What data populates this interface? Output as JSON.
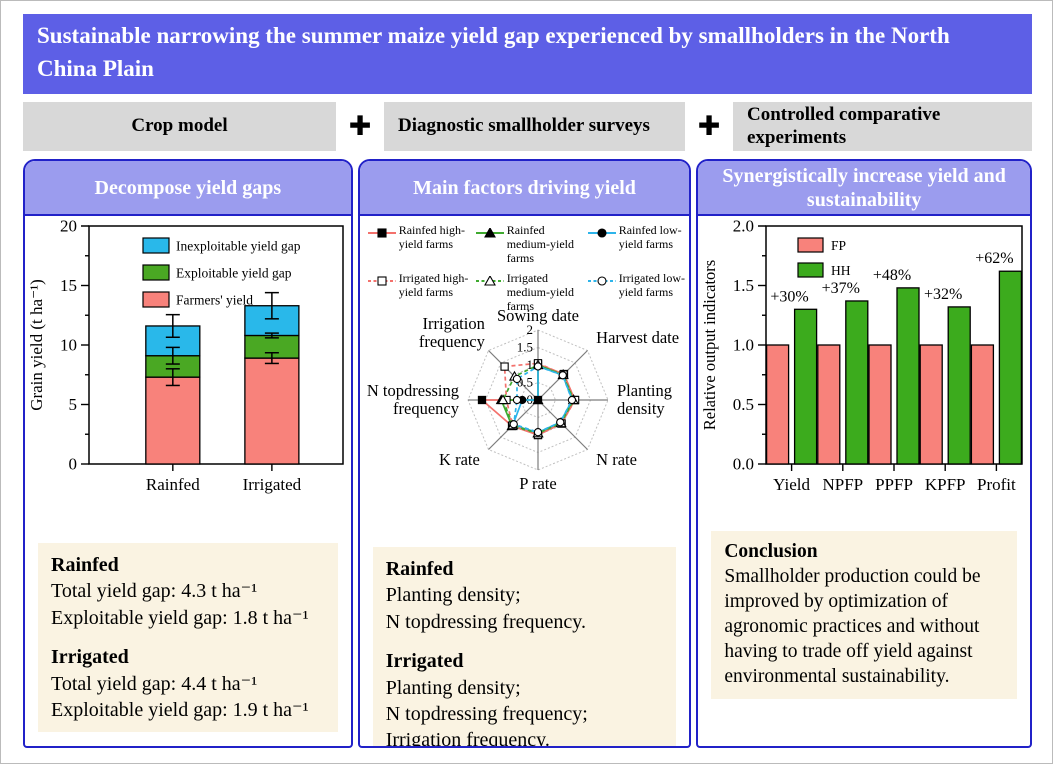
{
  "title": "Sustainable narrowing the summer maize yield gap experienced by smallholders in the North China Plain",
  "methods": {
    "plus": "✚",
    "items": [
      "Crop model",
      "Diagnostic smallholder surveys",
      "Controlled comparative experiments"
    ]
  },
  "colors": {
    "banner_bg": "#5d5fe6",
    "panel_header_bg": "#9b9cee",
    "panel_border": "#2121c8",
    "method_bg": "#d8d8d8",
    "note_bg": "#faf3e2"
  },
  "panels": [
    {
      "header": "Decompose yield gaps",
      "notes": [
        {
          "heading": "Rainfed",
          "lines": [
            "Total yield gap: 4.3 t ha⁻¹",
            "Exploitable yield gap: 1.8 t ha⁻¹"
          ]
        },
        {
          "heading": "Irrigated",
          "lines": [
            "Total yield gap: 4.4 t ha⁻¹",
            "Exploitable yield gap: 1.9 t ha⁻¹"
          ]
        }
      ]
    },
    {
      "header": "Main factors driving yield",
      "notes": [
        {
          "heading": "Rainfed",
          "lines": [
            "Planting density;",
            "N topdressing frequency."
          ]
        },
        {
          "heading": "Irrigated",
          "lines": [
            "Planting density;",
            "N topdressing frequency;",
            "Irrigation frequency."
          ]
        }
      ]
    },
    {
      "header": "Synergistically increase yield and sustainability",
      "notes": [
        {
          "heading": "Conclusion",
          "lines": [
            "Smallholder production could be improved by optimization of agronomic practices and without having to trade off yield against environmental sustainability."
          ]
        }
      ]
    }
  ],
  "chart_data": [
    {
      "type": "bar",
      "subtype": "stacked",
      "ylabel": "Grain yield (t ha⁻¹)",
      "ylim": [
        0,
        20
      ],
      "yticks": [
        0,
        5,
        10,
        15,
        20
      ],
      "minor_step": 2.5,
      "categories": [
        "Rainfed",
        "Irrigated"
      ],
      "series": [
        {
          "name": "Farmers' yield",
          "color": "#f8827b",
          "values": [
            7.3,
            8.9
          ],
          "errors": [
            0.7,
            0.45
          ]
        },
        {
          "name": "Exploitable yield gap",
          "color": "#4aa823",
          "values": [
            1.8,
            1.9
          ],
          "errors": [
            0.7,
            0.2
          ]
        },
        {
          "name": "Inexploitable yield gap",
          "color": "#29b8ea",
          "values": [
            2.5,
            2.5
          ],
          "errors": [
            0.95,
            1.1
          ]
        }
      ],
      "legend_order": [
        "Inexploitable yield gap",
        "Exploitable yield gap",
        "Farmers' yield"
      ],
      "grid": false,
      "legend_position": "upper-left-inside"
    },
    {
      "type": "radar",
      "axes": [
        "Sowing date",
        "Harvest date",
        "Planting density",
        "N rate",
        "P rate",
        "K rate",
        "N topdressing frequency",
        "Irrigation frequency"
      ],
      "rlim": [
        0,
        2
      ],
      "rticks": [
        0,
        0.5,
        1,
        1.5,
        2
      ],
      "series": [
        {
          "name": "Rainfed high-yield farms",
          "color": "#f3716c",
          "dash": false,
          "marker": "square-filled",
          "values": [
            1.02,
            1.05,
            1.05,
            0.95,
            1.0,
            1.05,
            1.6,
            0
          ]
        },
        {
          "name": "Rainfed medium-yield farms",
          "color": "#3faa2f",
          "dash": false,
          "marker": "triangle-filled",
          "values": [
            1.0,
            1.02,
            1.02,
            0.93,
            0.95,
            1.05,
            1.05,
            0
          ]
        },
        {
          "name": "Rainfed low-yield farms",
          "color": "#2db4ea",
          "dash": false,
          "marker": "circle-filled",
          "values": [
            0.97,
            1.0,
            0.98,
            0.9,
            0.93,
            1.02,
            0.45,
            0
          ]
        },
        {
          "name": "Irrigated high-yield farms",
          "color": "#f3716c",
          "dash": true,
          "marker": "square-open",
          "values": [
            1.05,
            1.03,
            1.06,
            0.95,
            1.0,
            1.03,
            0.9,
            1.35
          ]
        },
        {
          "name": "Irrigated medium-yield farms",
          "color": "#3faa2f",
          "dash": true,
          "marker": "triangle-open",
          "values": [
            1.0,
            1.01,
            1.01,
            0.93,
            0.95,
            1.02,
            1.0,
            0.95
          ]
        },
        {
          "name": "Irrigated low-yield farms",
          "color": "#2db4ea",
          "dash": true,
          "marker": "circle-open",
          "values": [
            0.96,
            1.0,
            0.97,
            0.9,
            0.92,
            0.98,
            0.6,
            0.85
          ]
        }
      ],
      "grid": "dotted-octagon",
      "legend_position": "top"
    },
    {
      "type": "bar",
      "subtype": "grouped",
      "ylabel": "Relative output indicators",
      "ylim": [
        0,
        2
      ],
      "yticks": [
        0,
        0.5,
        1,
        1.5,
        2
      ],
      "minor_step": 0.25,
      "categories": [
        "Yield",
        "NPFP",
        "PPFP",
        "KPFP",
        "Profit"
      ],
      "series": [
        {
          "name": "FP",
          "color": "#f8827b",
          "values": [
            1.0,
            1.0,
            1.0,
            1.0,
            1.0
          ]
        },
        {
          "name": "HH",
          "color": "#3cab1d",
          "values": [
            1.3,
            1.37,
            1.48,
            1.32,
            1.62
          ]
        }
      ],
      "bar_labels": [
        "+30%",
        "+37%",
        "+48%",
        "+32%",
        "+62%"
      ],
      "grid": false,
      "legend_position": "upper-left-inside"
    }
  ]
}
